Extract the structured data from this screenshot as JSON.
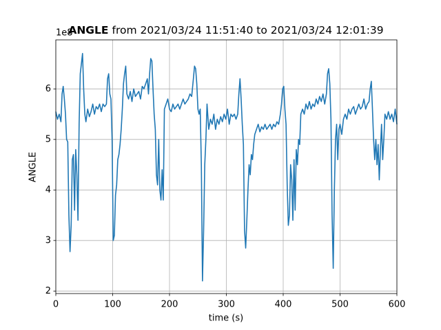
{
  "chart_data": {
    "type": "line",
    "title_bold": "ANGLE",
    "title": "from 2021/03/24 11:51:40 to 2021/03/24 12:01:39",
    "offset_text": "1e8",
    "xlabel": "time (s)",
    "ylabel": "ANGLE",
    "xlim": [
      0,
      600
    ],
    "ylim": [
      1.95,
      6.97
    ],
    "xticks": [
      0,
      100,
      200,
      300,
      400,
      500,
      600
    ],
    "yticks": [
      2,
      3,
      4,
      5,
      6
    ],
    "grid": true,
    "series": [
      {
        "color": "#1f77b4",
        "x": [
          0,
          3,
          6,
          9,
          11,
          13,
          15,
          17,
          19,
          21,
          23,
          25,
          27,
          29,
          31,
          33,
          35,
          37,
          39,
          41,
          43,
          45,
          47,
          49,
          51,
          53,
          56,
          59,
          62,
          65,
          68,
          71,
          74,
          77,
          80,
          83,
          86,
          89,
          91,
          93,
          95,
          97,
          99,
          101,
          103,
          105,
          107,
          109,
          111,
          113,
          115,
          117,
          119,
          121,
          123,
          125,
          128,
          131,
          134,
          137,
          140,
          143,
          146,
          149,
          152,
          155,
          158,
          161,
          163,
          165,
          167,
          169,
          171,
          173,
          175,
          177,
          179,
          181,
          183,
          185,
          187,
          189,
          191,
          194,
          197,
          200,
          203,
          206,
          209,
          212,
          215,
          218,
          221,
          224,
          227,
          230,
          233,
          236,
          239,
          242,
          244,
          246,
          248,
          250,
          252,
          254,
          256,
          258,
          260,
          262,
          264,
          266,
          269,
          272,
          275,
          278,
          281,
          284,
          287,
          290,
          293,
          296,
          299,
          302,
          305,
          308,
          311,
          314,
          317,
          320,
          322,
          324,
          326,
          328,
          330,
          332,
          334,
          336,
          338,
          340,
          342,
          344,
          346,
          348,
          350,
          353,
          356,
          359,
          362,
          365,
          368,
          371,
          374,
          377,
          380,
          383,
          386,
          389,
          392,
          395,
          397,
          399,
          401,
          403,
          405,
          407,
          409,
          411,
          413,
          415,
          417,
          419,
          421,
          423,
          425,
          427,
          429,
          431,
          434,
          437,
          440,
          443,
          446,
          449,
          452,
          455,
          458,
          461,
          464,
          467,
          470,
          473,
          476,
          478,
          480,
          482,
          484,
          486,
          488,
          490,
          492,
          494,
          496,
          498,
          500,
          503,
          506,
          509,
          512,
          515,
          518,
          521,
          524,
          527,
          530,
          533,
          536,
          539,
          542,
          545,
          548,
          551,
          553,
          555,
          557,
          559,
          561,
          563,
          565,
          567,
          569,
          571,
          573,
          575,
          577,
          579,
          582,
          585,
          588,
          591,
          594,
          597,
          600
        ],
        "values": [
          5.55,
          5.4,
          5.5,
          5.35,
          5.9,
          6.05,
          5.8,
          5.5,
          5.0,
          4.95,
          3.5,
          2.78,
          3.3,
          4.6,
          4.7,
          3.6,
          4.8,
          4.3,
          3.4,
          5.3,
          6.3,
          6.5,
          6.7,
          6.0,
          5.5,
          5.35,
          5.6,
          5.45,
          5.55,
          5.7,
          5.5,
          5.65,
          5.6,
          5.7,
          5.55,
          5.7,
          5.65,
          5.7,
          6.2,
          6.3,
          5.9,
          5.8,
          5.0,
          3.0,
          3.1,
          3.9,
          4.1,
          4.6,
          4.7,
          4.9,
          5.2,
          5.6,
          6.1,
          6.3,
          6.45,
          5.9,
          5.8,
          5.95,
          5.75,
          6.0,
          5.85,
          5.9,
          5.95,
          5.8,
          6.05,
          6.0,
          6.1,
          6.2,
          5.9,
          6.3,
          6.6,
          6.55,
          6.0,
          5.5,
          5.2,
          4.3,
          4.1,
          5.0,
          4.0,
          3.8,
          4.4,
          3.8,
          5.6,
          5.7,
          5.8,
          5.6,
          5.55,
          5.7,
          5.6,
          5.65,
          5.7,
          5.6,
          5.7,
          5.8,
          5.7,
          5.75,
          5.8,
          5.9,
          5.85,
          6.2,
          6.45,
          6.4,
          6.1,
          5.6,
          5.5,
          5.6,
          4.5,
          2.2,
          3.2,
          4.5,
          5.0,
          5.7,
          5.2,
          5.4,
          5.3,
          5.5,
          5.2,
          5.4,
          5.3,
          5.45,
          5.35,
          5.5,
          5.4,
          5.6,
          5.3,
          5.5,
          5.45,
          5.5,
          5.4,
          5.5,
          5.9,
          6.2,
          5.8,
          5.3,
          4.9,
          3.2,
          2.85,
          3.4,
          4.0,
          4.5,
          4.3,
          4.7,
          4.6,
          4.9,
          5.1,
          5.2,
          5.3,
          5.15,
          5.25,
          5.2,
          5.3,
          5.2,
          5.25,
          5.3,
          5.2,
          5.3,
          5.25,
          5.35,
          5.3,
          5.5,
          5.7,
          6.0,
          6.05,
          5.6,
          5.3,
          4.1,
          3.3,
          3.5,
          4.5,
          4.2,
          3.4,
          4.6,
          3.6,
          4.8,
          4.5,
          5.0,
          4.9,
          5.5,
          5.6,
          5.5,
          5.7,
          5.6,
          5.75,
          5.6,
          5.7,
          5.65,
          5.8,
          5.7,
          5.85,
          5.75,
          5.9,
          5.7,
          5.9,
          6.3,
          6.4,
          6.1,
          5.4,
          3.5,
          2.45,
          4.0,
          5.0,
          5.3,
          4.6,
          5.2,
          5.3,
          5.1,
          5.4,
          5.5,
          5.4,
          5.6,
          5.5,
          5.6,
          5.65,
          5.5,
          5.6,
          5.7,
          5.6,
          5.65,
          5.8,
          5.6,
          5.7,
          5.75,
          6.0,
          6.15,
          5.6,
          5.0,
          4.6,
          5.0,
          4.5,
          4.9,
          4.2,
          4.8,
          5.3,
          4.6,
          5.0,
          5.5,
          5.4,
          5.55,
          5.4,
          5.5,
          5.35,
          5.6,
          5.3
        ]
      }
    ]
  }
}
